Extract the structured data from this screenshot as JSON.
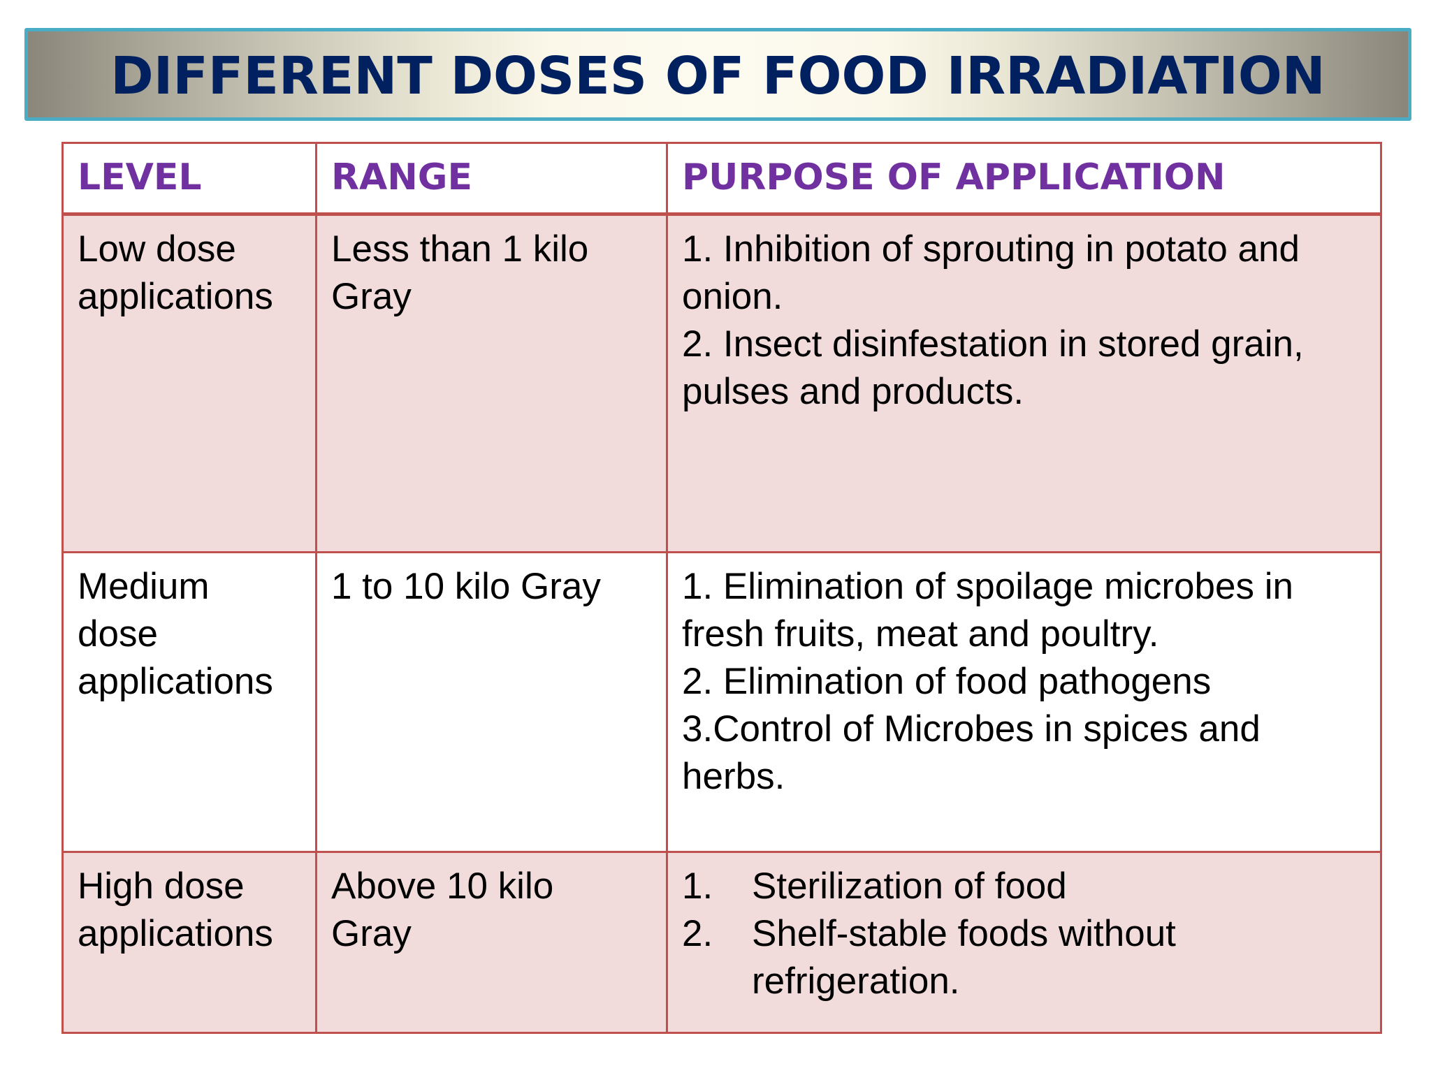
{
  "title": "DIFFERENT DOSES OF FOOD IRRADIATION",
  "colors": {
    "title_text": "#002060",
    "title_border": "#4BACC6",
    "header_text": "#7030A0",
    "table_border": "#C0504D",
    "row_pink": "#F2DCDB"
  },
  "table": {
    "headers": [
      "LEVEL",
      "RANGE",
      "PURPOSE OF APPLICATION"
    ],
    "rows": [
      {
        "level": [
          "Low dose",
          "applications"
        ],
        "range": [
          "Less than 1 kilo",
          "Gray"
        ],
        "purpose": [
          "1. Inhibition of sprouting in potato and",
          "onion.",
          "2. Insect disinfestation in stored grain,",
          "pulses and products."
        ]
      },
      {
        "level": [
          "Medium",
          "dose",
          "applications"
        ],
        "range": [
          "1 to 10 kilo Gray"
        ],
        "purpose": [
          "1. Elimination of spoilage microbes in",
          "fresh fruits, meat and poultry.",
          "2. Elimination of food pathogens",
          "3.Control of Microbes in spices and",
          "herbs."
        ]
      },
      {
        "level": [
          "High dose",
          "applications"
        ],
        "range": [
          "Above 10 kilo",
          "Gray"
        ],
        "purpose_list": [
          {
            "num": "1.",
            "lines": [
              "Sterilization of food"
            ]
          },
          {
            "num": "2.",
            "lines": [
              "Shelf-stable foods without",
              "refrigeration."
            ]
          }
        ]
      }
    ]
  }
}
